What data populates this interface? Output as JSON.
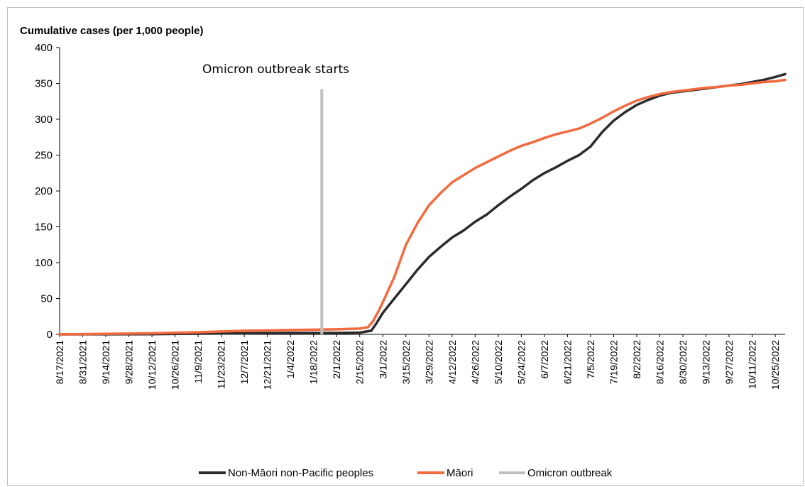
{
  "chart_data": {
    "type": "line",
    "title": "",
    "ylabel": "Cumulative cases (per 1,000 people)",
    "xlabel": "",
    "ylim": [
      0,
      400
    ],
    "yticks": [
      0,
      50,
      100,
      150,
      200,
      250,
      300,
      350,
      400
    ],
    "x_tick_labels": [
      "8/17/2021",
      "8/31/2021",
      "9/14/2021",
      "9/28/2021",
      "10/12/2021",
      "10/26/2021",
      "11/9/2021",
      "11/23/2021",
      "12/7/2021",
      "12/21/2021",
      "1/4/2022",
      "1/18/2022",
      "2/1/2022",
      "2/15/2022",
      "3/1/2022",
      "3/15/2022",
      "3/29/2022",
      "4/12/2022",
      "4/26/2022",
      "5/10/2022",
      "5/24/2022",
      "6/7/2022",
      "6/21/2022",
      "7/5/2022",
      "7/19/2022",
      "8/2/2022",
      "8/16/2022",
      "8/30/2022",
      "9/13/2022",
      "9/27/2022",
      "10/11/2022",
      "10/25/2022"
    ],
    "x_range": [
      "8/17/2021",
      "10/31/2022"
    ],
    "grid": false,
    "legend_position": "bottom",
    "series": [
      {
        "name": "Non-Māori non-Pacific peoples",
        "color": "#2b2b2b",
        "points": [
          [
            "8/17/2021",
            0
          ],
          [
            "10/12/2021",
            0.3
          ],
          [
            "11/9/2021",
            1
          ],
          [
            "12/7/2021",
            1.5
          ],
          [
            "1/4/2022",
            2
          ],
          [
            "1/18/2022",
            2
          ],
          [
            "2/1/2022",
            2
          ],
          [
            "2/15/2022",
            2.5
          ],
          [
            "2/22/2022",
            5
          ],
          [
            "2/25/2022",
            15
          ],
          [
            "3/1/2022",
            30
          ],
          [
            "3/8/2022",
            50
          ],
          [
            "3/15/2022",
            70
          ],
          [
            "3/22/2022",
            90
          ],
          [
            "3/29/2022",
            108
          ],
          [
            "4/5/2022",
            122
          ],
          [
            "4/12/2022",
            135
          ],
          [
            "4/19/2022",
            145
          ],
          [
            "4/26/2022",
            157
          ],
          [
            "5/3/2022",
            167
          ],
          [
            "5/10/2022",
            180
          ],
          [
            "5/17/2022",
            192
          ],
          [
            "5/24/2022",
            203
          ],
          [
            "5/31/2022",
            215
          ],
          [
            "6/7/2022",
            225
          ],
          [
            "6/14/2022",
            233
          ],
          [
            "6/21/2022",
            242
          ],
          [
            "6/28/2022",
            250
          ],
          [
            "7/5/2022",
            262
          ],
          [
            "7/12/2022",
            282
          ],
          [
            "7/19/2022",
            298
          ],
          [
            "7/26/2022",
            310
          ],
          [
            "8/2/2022",
            320
          ],
          [
            "8/9/2022",
            327
          ],
          [
            "8/16/2022",
            333
          ],
          [
            "8/23/2022",
            337
          ],
          [
            "8/30/2022",
            339
          ],
          [
            "9/6/2022",
            341
          ],
          [
            "9/13/2022",
            343
          ],
          [
            "9/20/2022",
            345
          ],
          [
            "9/27/2022",
            347
          ],
          [
            "10/4/2022",
            349
          ],
          [
            "10/11/2022",
            352
          ],
          [
            "10/18/2022",
            355
          ],
          [
            "10/25/2022",
            359
          ],
          [
            "10/31/2022",
            363
          ]
        ]
      },
      {
        "name": "Māori",
        "color": "#f26a3d",
        "points": [
          [
            "8/17/2021",
            0
          ],
          [
            "9/14/2021",
            0.8
          ],
          [
            "10/12/2021",
            1.5
          ],
          [
            "11/9/2021",
            3
          ],
          [
            "12/7/2021",
            5
          ],
          [
            "1/4/2022",
            6
          ],
          [
            "1/18/2022",
            6.5
          ],
          [
            "2/1/2022",
            7
          ],
          [
            "2/15/2022",
            8
          ],
          [
            "2/20/2022",
            10
          ],
          [
            "2/23/2022",
            18
          ],
          [
            "2/27/2022",
            35
          ],
          [
            "3/1/2022",
            45
          ],
          [
            "3/8/2022",
            80
          ],
          [
            "3/15/2022",
            125
          ],
          [
            "3/22/2022",
            155
          ],
          [
            "3/29/2022",
            180
          ],
          [
            "4/5/2022",
            197
          ],
          [
            "4/12/2022",
            212
          ],
          [
            "4/19/2022",
            222
          ],
          [
            "4/26/2022",
            232
          ],
          [
            "5/3/2022",
            240
          ],
          [
            "5/10/2022",
            248
          ],
          [
            "5/17/2022",
            256
          ],
          [
            "5/24/2022",
            263
          ],
          [
            "5/31/2022",
            268
          ],
          [
            "6/7/2022",
            274
          ],
          [
            "6/14/2022",
            279
          ],
          [
            "6/21/2022",
            283
          ],
          [
            "6/28/2022",
            287
          ],
          [
            "7/5/2022",
            294
          ],
          [
            "7/12/2022",
            302
          ],
          [
            "7/19/2022",
            311
          ],
          [
            "7/26/2022",
            319
          ],
          [
            "8/2/2022",
            326
          ],
          [
            "8/9/2022",
            331
          ],
          [
            "8/16/2022",
            335
          ],
          [
            "8/23/2022",
            338
          ],
          [
            "8/30/2022",
            340
          ],
          [
            "9/6/2022",
            342
          ],
          [
            "9/13/2022",
            344
          ],
          [
            "9/20/2022",
            345
          ],
          [
            "9/27/2022",
            347
          ],
          [
            "10/4/2022",
            348
          ],
          [
            "10/11/2022",
            350
          ],
          [
            "10/18/2022",
            352
          ],
          [
            "10/25/2022",
            353
          ],
          [
            "10/31/2022",
            355
          ]
        ]
      }
    ],
    "vertical_marker": {
      "name": "Omicron outbreak",
      "date": "1/23/2022",
      "y_top": 342,
      "color": "#bfbfbf",
      "annotation": "Omicron outbreak starts"
    }
  }
}
